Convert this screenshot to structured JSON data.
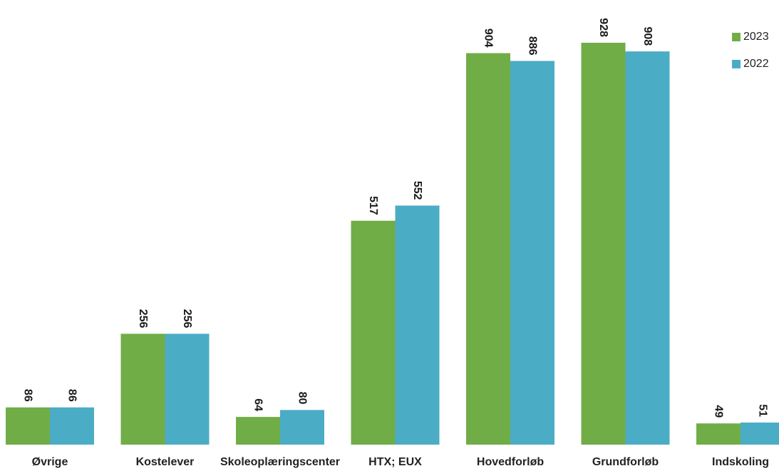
{
  "chart_data": {
    "type": "bar",
    "categories": [
      "Øvrige",
      "Kostelever",
      "Skoleoplæringscenter",
      "HTX; EUX",
      "Hovedforløb",
      "Grundforløb",
      "Indskoling"
    ],
    "series": [
      {
        "name": "2023",
        "color": "#70ad47",
        "values": [
          86,
          256,
          64,
          517,
          904,
          928,
          49
        ]
      },
      {
        "name": "2022",
        "color": "#4bacc6",
        "values": [
          86,
          256,
          80,
          552,
          886,
          908,
          51
        ]
      }
    ],
    "title": "",
    "xlabel": "",
    "ylabel": "",
    "ylim": [
      0,
      960
    ],
    "grid": false,
    "legend_position": "top-right"
  }
}
